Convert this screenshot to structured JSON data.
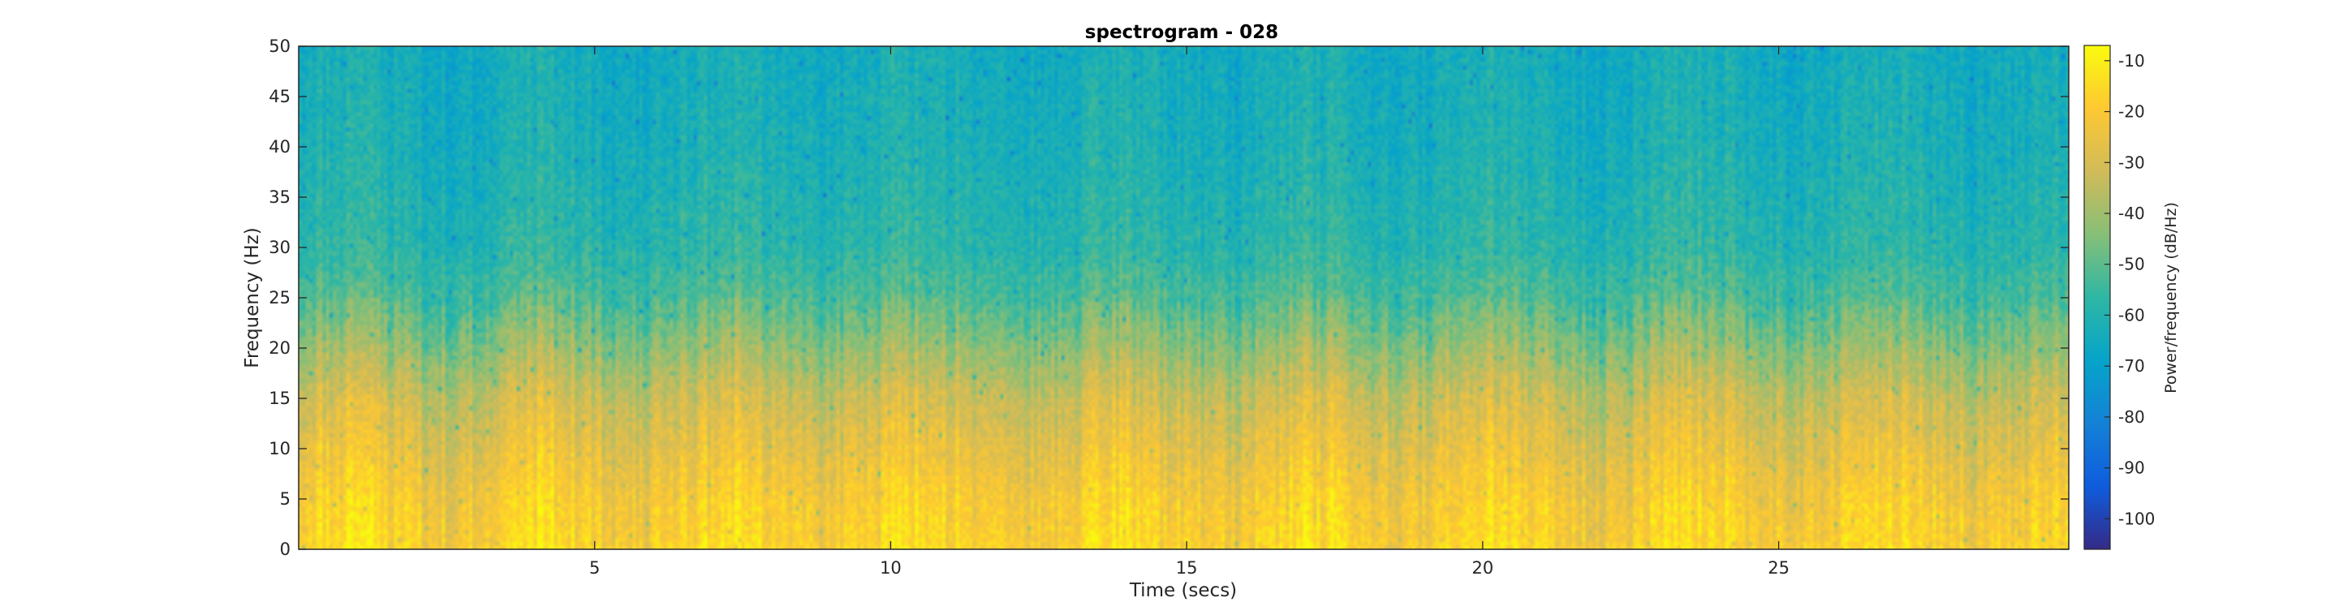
{
  "chart_data": {
    "type": "heatmap",
    "title": "spectrogram - 028",
    "xlabel": "Time (secs)",
    "ylabel": "Frequency (Hz)",
    "xlim": [
      0,
      29.9
    ],
    "ylim": [
      0,
      50
    ],
    "x_ticks": [
      5,
      10,
      15,
      20,
      25
    ],
    "y_ticks": [
      0,
      5,
      10,
      15,
      20,
      25,
      30,
      35,
      40,
      45,
      50
    ],
    "colormap": "parula",
    "colorbar": {
      "label": "Power/frequency (dB/Hz)",
      "range": [
        -106,
        -7
      ],
      "ticks": [
        -10,
        -20,
        -30,
        -40,
        -50,
        -60,
        -70,
        -80,
        -90,
        -100
      ]
    },
    "mean_power_profile": [
      {
        "freq_hz": 0,
        "power_db": -17
      },
      {
        "freq_hz": 5,
        "power_db": -20
      },
      {
        "freq_hz": 10,
        "power_db": -26
      },
      {
        "freq_hz": 15,
        "power_db": -32
      },
      {
        "freq_hz": 20,
        "power_db": -42
      },
      {
        "freq_hz": 25,
        "power_db": -52
      },
      {
        "freq_hz": 30,
        "power_db": -58
      },
      {
        "freq_hz": 35,
        "power_db": -60
      },
      {
        "freq_hz": 40,
        "power_db": -62
      },
      {
        "freq_hz": 45,
        "power_db": -63
      },
      {
        "freq_hz": 50,
        "power_db": -64
      }
    ],
    "grid": false,
    "colors": {
      "parula": [
        "#352A87",
        "#0F5CDD",
        "#1481D6",
        "#06A4CA",
        "#2EB7A4",
        "#87BF77",
        "#D1BB59",
        "#FEC832",
        "#F9FB0E"
      ]
    }
  }
}
